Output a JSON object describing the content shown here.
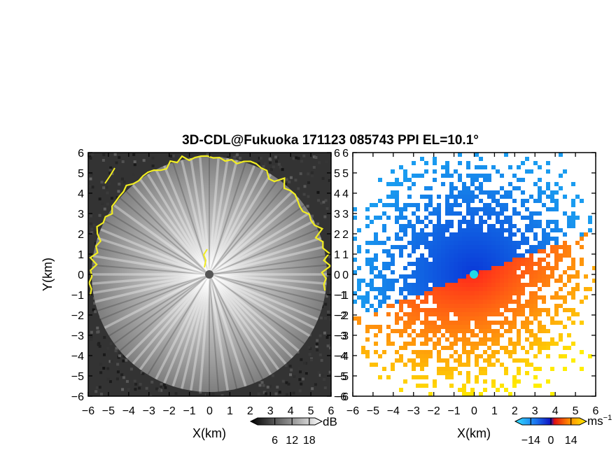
{
  "chart_data": {
    "title": "3D-CDL@Fukuoka 171123 085743 PPI EL=10.1°",
    "panels": [
      {
        "type": "heatmap",
        "quantity": "signal",
        "xlabel": "X(km)",
        "ylabel": "Y(km)",
        "xlim": [
          -6,
          6
        ],
        "ylim": [
          -6,
          6
        ],
        "xticks": [
          "−6",
          "−5",
          "−4",
          "−3",
          "−2",
          "−1",
          "0",
          "1",
          "2",
          "3",
          "4",
          "5",
          "6"
        ],
        "yticks": [
          "6",
          "5",
          "4",
          "3",
          "2",
          "1",
          "0",
          "−1",
          "−2",
          "−3",
          "−4",
          "−5",
          "−6"
        ],
        "colormap": "grayscale",
        "colorbar": {
          "unit": "dB",
          "ticks": [
            6,
            12,
            18
          ],
          "tick_labels": [
            "6",
            "12",
            "18"
          ],
          "range": [
            0,
            20
          ]
        },
        "radar_center": [
          0,
          0
        ],
        "coverage_radius_km": 5.8,
        "contour_color": "#f2ee22"
      },
      {
        "type": "heatmap",
        "quantity": "radial velocity",
        "xlabel": "X(km)",
        "xlim": [
          -6,
          6
        ],
        "ylim": [
          -6,
          6
        ],
        "xticks": [
          "−6",
          "−5",
          "−4",
          "−3",
          "−2",
          "−1",
          "0",
          "1",
          "2",
          "3",
          "4",
          "5",
          "6"
        ],
        "yticks": [
          "6",
          "5",
          "4",
          "3",
          "2",
          "1",
          "0",
          "−1",
          "−2",
          "−3",
          "−4",
          "−5",
          "−6"
        ],
        "colormap": "blue-cyan-red-orange-yellow",
        "colorbar": {
          "unit": "ms",
          "unit_exponent": "−1",
          "ticks": [
            -14,
            0,
            14
          ],
          "tick_labels": [
            "−14",
            "0",
            "14"
          ],
          "range": [
            -20,
            20
          ]
        },
        "radar_center": [
          0,
          0
        ],
        "coverage_radius_km": 6.0,
        "colors": {
          "approach": "#0a38d8",
          "mid": "#1a9cf0",
          "recede": "#ff2a1a",
          "far": "#ffee00",
          "center": "#22d8e8"
        }
      }
    ]
  }
}
